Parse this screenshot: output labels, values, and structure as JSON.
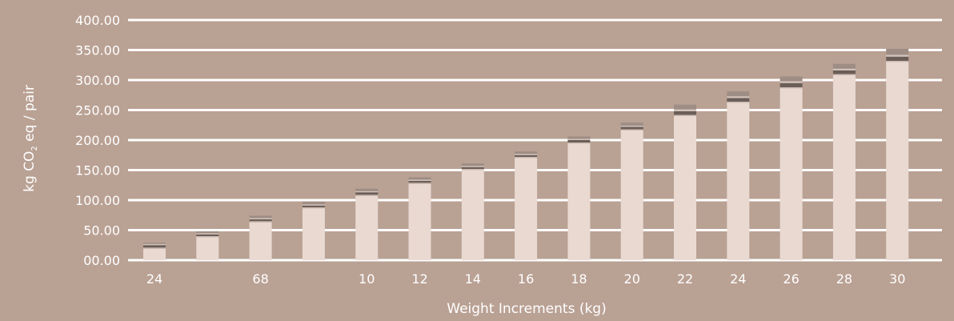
{
  "colors": {
    "background": "#b9a194",
    "gridline": "#ffffff",
    "text": "#ffffff",
    "base_segment": "#e9d9d1",
    "seg_mid": "#cbbab0",
    "seg_dark": "#6b5e58",
    "seg_light": "#d3c4bb",
    "seg_top": "#9e8d84"
  },
  "chart_data": {
    "type": "bar",
    "stacked": true,
    "categories": [
      "24",
      "",
      "68",
      "",
      "10",
      "12",
      "14",
      "16",
      "18",
      "20",
      "22",
      "24",
      "26",
      "28",
      "30"
    ],
    "series": [
      {
        "values": [
          19,
          38,
          63,
          86,
          107,
          127,
          150,
          170,
          194,
          216,
          240,
          262,
          286,
          308,
          330
        ]
      },
      {
        "values": [
          2,
          2,
          2,
          2,
          2,
          2,
          2,
          2,
          2,
          2,
          2,
          2,
          2,
          2,
          2
        ]
      },
      {
        "values": [
          4,
          3,
          3,
          3,
          4,
          3,
          3,
          3,
          4,
          4,
          6,
          6,
          7,
          6,
          7
        ]
      },
      {
        "values": [
          2,
          2,
          2,
          2,
          2,
          2,
          2,
          2,
          2,
          2,
          3,
          3,
          3,
          3,
          3
        ]
      },
      {
        "values": [
          2,
          3,
          4,
          4,
          4,
          4,
          4,
          4,
          4,
          5,
          8,
          8,
          8,
          8,
          10
        ]
      }
    ],
    "y_ticks": [
      "00.00",
      "50.00",
      "100.00",
      "150.00",
      "200.00",
      "250.00",
      "300.00",
      "350.00",
      "400.00"
    ],
    "ylim": [
      0,
      400
    ],
    "xlabel": "Weight Increments (kg)",
    "ylabel_main": "kg CO",
    "ylabel_sub": "2",
    "ylabel_rest": " eq / pair",
    "grid": true,
    "legend": "none"
  }
}
